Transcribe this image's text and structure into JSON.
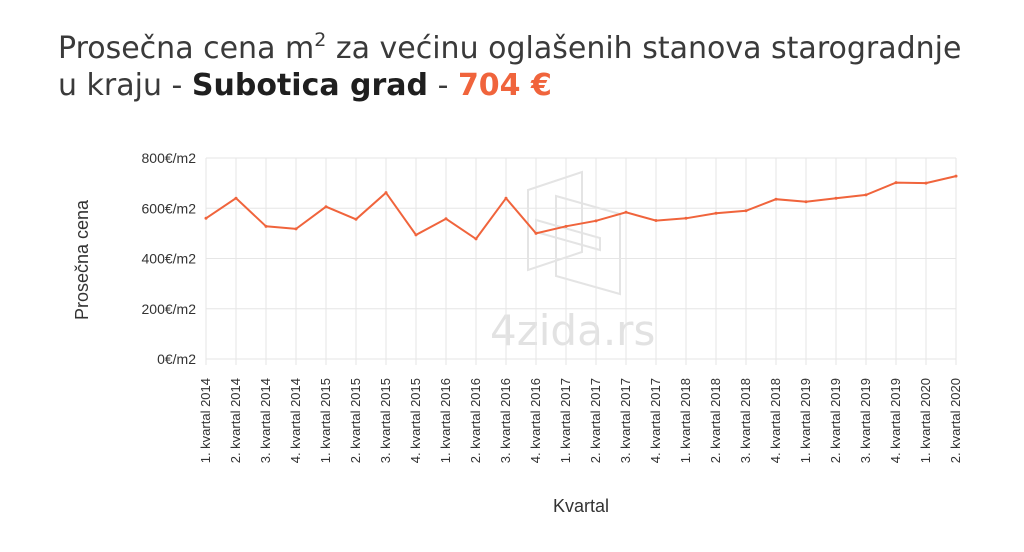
{
  "title": {
    "line1_prefix": "Prosečna cena m",
    "superscript": "2",
    "line1_suffix": " za većinu oglašenih stanova starogradnje",
    "line2_prefix": "u kraju - ",
    "location": "Subotica grad",
    "separator": " - ",
    "price": "704 €",
    "price_color": "#f0643c"
  },
  "watermark": {
    "text": "4zida.rs"
  },
  "chart_data": {
    "type": "line",
    "xlabel": "Kvartal",
    "ylabel": "Prosečna cena",
    "ylim": [
      0,
      800
    ],
    "yticks": [
      0,
      200,
      400,
      600,
      800
    ],
    "ytick_suffix": "€/m2",
    "grid": true,
    "line_color": "#f0643c",
    "categories": [
      "1. kvartal 2014",
      "2. kvartal 2014",
      "3. kvartal 2014",
      "4. kvartal 2014",
      "1. kvartal 2015",
      "2. kvartal 2015",
      "3. kvartal 2015",
      "4. kvartal 2015",
      "1. kvartal 2016",
      "2. kvartal 2016",
      "3. kvartal 2016",
      "4. kvartal 2016",
      "1. kvartal 2017",
      "2. kvartal 2017",
      "3. kvartal 2017",
      "4. kvartal 2017",
      "1. kvartal 2018",
      "2. kvartal 2018",
      "3. kvartal 2018",
      "4. kvartal 2018",
      "1. kvartal 2019",
      "2. kvartal 2019",
      "3. kvartal 2019",
      "4. kvartal 2019",
      "1. kvartal 2020",
      "2. kvartal 2020"
    ],
    "series": [
      {
        "values": [
          560,
          640,
          528,
          518,
          606,
          556,
          662,
          494,
          558,
          478,
          640,
          500,
          528,
          550,
          584,
          551,
          560,
          580,
          590,
          636,
          626,
          640,
          653,
          702,
          700,
          728
        ]
      }
    ]
  }
}
